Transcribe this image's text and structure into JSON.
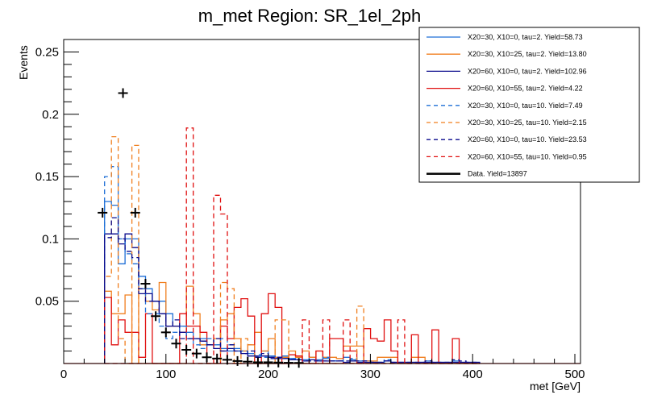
{
  "chart_data": {
    "type": "histogram",
    "title": "m_met Region: SR_1el_2ph",
    "xlabel": "met [GeV]",
    "ylabel": "Events",
    "xlim": [
      0,
      500
    ],
    "ylim": [
      0,
      0.26
    ],
    "x_ticks": [
      "0",
      "100",
      "200",
      "300",
      "400",
      "500"
    ],
    "x_tick_values": [
      0,
      100,
      200,
      300,
      400,
      500
    ],
    "y_ticks": [
      "0.05",
      "0.1",
      "0.15",
      "0.2",
      "0.25"
    ],
    "y_tick_values": [
      0.05,
      0.1,
      0.15,
      0.2,
      0.25
    ],
    "bin_start": 40,
    "bin_width": 6.67,
    "legend_position": "top-right",
    "series": [
      {
        "name": "X20=30, X10=0, tau=2. Yield=58.73",
        "color": "#1f6fd6",
        "style": "solid",
        "values": [
          0.13,
          0.127,
          0.08,
          0.1,
          0.1,
          0.07,
          0.06,
          0.05,
          0.05,
          0.04,
          0.03,
          0.03,
          0.025,
          0.02,
          0.02,
          0.015,
          0.015,
          0.012,
          0.01,
          0.012,
          0.01,
          0.008,
          0.006,
          0.01,
          0.006,
          0.005,
          0.006,
          0.004,
          0.003,
          0.003,
          0.005,
          0.003,
          0.004,
          0.002,
          0.002,
          0.005,
          0.003,
          0.002,
          0.002,
          0.001,
          0.001,
          0.002,
          0.001,
          0.001,
          0.001,
          0.001,
          0.001,
          0.002,
          0.001,
          0.001,
          0.001,
          0.002,
          0.001,
          0.001,
          0.001
        ]
      },
      {
        "name": "X20=30, X10=25, tau=2. Yield=13.80",
        "color": "#f07f1f",
        "style": "solid",
        "values": [
          0.058,
          0.04,
          0.04,
          0.055,
          0,
          0.06,
          0.05,
          0.043,
          0.065,
          0.03,
          0.03,
          0.025,
          0.062,
          0.04,
          0.015,
          0.015,
          0.02,
          0.035,
          0.04,
          0.02,
          0.01,
          0.015,
          0.025,
          0.01,
          0.02,
          0.005,
          0.005,
          0.01,
          0.005,
          0.01,
          0.005,
          0.01,
          0.005,
          0.005,
          0.004,
          0.014,
          0.014,
          0.014,
          0.002,
          0.002,
          0.005,
          0.005,
          0.005,
          0.0,
          0.0,
          0.005,
          0.005,
          0.0,
          0.0,
          0.0,
          0.0,
          0.0,
          0.0,
          0.0,
          0.0
        ]
      },
      {
        "name": "X20=60, X10=0, tau=2. Yield=102.96",
        "color": "#0a0a8c",
        "style": "solid",
        "values": [
          0.104,
          0.104,
          0.096,
          0.104,
          0.093,
          0.056,
          0.056,
          0.05,
          0.04,
          0.03,
          0.03,
          0.025,
          0.02,
          0.02,
          0.018,
          0.015,
          0.012,
          0.01,
          0.012,
          0.01,
          0.008,
          0.006,
          0.005,
          0.006,
          0.005,
          0.004,
          0.004,
          0.003,
          0.003,
          0.002,
          0.003,
          0.002,
          0.002,
          0.002,
          0.002,
          0.001,
          0.002,
          0.001,
          0.001,
          0.001,
          0.001,
          0.002,
          0.001,
          0.001,
          0.001,
          0.001,
          0.001,
          0.001,
          0.001,
          0.001,
          0.001,
          0.001,
          0.001,
          0.001,
          0.001
        ]
      },
      {
        "name": "X20=60, X10=55, tau=2. Yield=4.22",
        "color": "#e01010",
        "style": "solid",
        "values": [
          0.053,
          0.015,
          0.035,
          0.025,
          0.025,
          0.005,
          0.04,
          0.0,
          0.0,
          0.0,
          0.0,
          0.04,
          0.03,
          0.03,
          0.025,
          0.0,
          0.0,
          0.03,
          0.02,
          0.045,
          0.052,
          0.038,
          0.0,
          0.04,
          0.056,
          0.045,
          0.0,
          0.007,
          0.006,
          0.0,
          0.0,
          0.01,
          0.0,
          0.02,
          0.02,
          0.01,
          0.01,
          0.0,
          0.028,
          0.02,
          0.018,
          0.035,
          0.01,
          0.0,
          0.0,
          0.023,
          0.0,
          0.0,
          0.027,
          0.0,
          0.0,
          0.02,
          0.0,
          0.0,
          0.0
        ]
      },
      {
        "name": "X20=30, X10=0, tau=10. Yield=7.49",
        "color": "#1f6fd6",
        "style": "dashed",
        "values": [
          0.15,
          0.158,
          0.1,
          0.088,
          0.08,
          0.06,
          0.04,
          0.04,
          0.03,
          0.02,
          0.025,
          0.03,
          0.02,
          0.015,
          0.012,
          0.02,
          0.015,
          0.02,
          0.015,
          0.01,
          0.01,
          0.008,
          0.007,
          0.005,
          0.006,
          0.005,
          0.004,
          0.004,
          0.003,
          0.003,
          0.002,
          0.002,
          0.005,
          0.002,
          0.002,
          0.0,
          0.004,
          0.002,
          0.002,
          0.0,
          0.0,
          0.003,
          0.0,
          0.0,
          0.0,
          0.0,
          0.0,
          0.0,
          0.0,
          0.0,
          0.0,
          0.0,
          0.0,
          0.0,
          0.0
        ]
      },
      {
        "name": "X20=30, X10=25, tau=10. Yield=2.15",
        "color": "#f07f1f",
        "style": "dashed",
        "values": [
          0.07,
          0.182,
          0.02,
          0.0,
          0.175,
          0.0,
          0.0,
          0.0,
          0.0,
          0.0,
          0.0,
          0.0,
          0.0,
          0.0,
          0.0,
          0.0,
          0.0,
          0.065,
          0.06,
          0.0,
          0.02,
          0.015,
          0.0,
          0.0,
          0.0,
          0.035,
          0.035,
          0.0,
          0.0,
          0.0,
          0.0,
          0.0,
          0.0,
          0.0,
          0.0,
          0.0,
          0.0,
          0.046,
          0.0,
          0.0,
          0.0,
          0.0,
          0.0,
          0.0,
          0.0,
          0.0,
          0.0,
          0.0,
          0.0,
          0.0,
          0.0,
          0.0,
          0.0,
          0.0,
          0.0
        ]
      },
      {
        "name": "X20=60, X10=0, tau=10. Yield=23.53",
        "color": "#0a0a8c",
        "style": "dashed",
        "values": [
          0.101,
          0.117,
          0.1,
          0.09,
          0.085,
          0.06,
          0.05,
          0.05,
          0.04,
          0.03,
          0.035,
          0.02,
          0.02,
          0.02,
          0.018,
          0.015,
          0.02,
          0.01,
          0.015,
          0.01,
          0.008,
          0.01,
          0.006,
          0.008,
          0.004,
          0.005,
          0.004,
          0.003,
          0.003,
          0.002,
          0.002,
          0.002,
          0.002,
          0.002,
          0.002,
          0.002,
          0.002,
          0.002,
          0.002,
          0.001,
          0.001,
          0.002,
          0.001,
          0.001,
          0.001,
          0.001,
          0.001,
          0.002,
          0.001,
          0.001,
          0.001,
          0.003,
          0.002,
          0.001,
          0.001
        ]
      },
      {
        "name": "X20=60, X10=55, tau=10. Yield=0.95",
        "color": "#e01010",
        "style": "dashed",
        "values": [
          0.0,
          0.0,
          0.0,
          0.0,
          0.0,
          0.0,
          0.0,
          0.0,
          0.0,
          0.0,
          0.0,
          0.0,
          0.189,
          0.0,
          0.0,
          0.0,
          0.135,
          0.12,
          0.0,
          0.0,
          0.0,
          0.0,
          0.0,
          0.0,
          0.0,
          0.0,
          0.0,
          0.0,
          0.0,
          0.035,
          0.0,
          0.0,
          0.035,
          0.0,
          0.0,
          0.035,
          0.0,
          0.0,
          0.0,
          0.0,
          0.0,
          0.0,
          0.0,
          0.035,
          0.0,
          0.0,
          0.0,
          0.0,
          0.0,
          0.0,
          0.0,
          0.0,
          0.0,
          0.0,
          0.0
        ]
      }
    ],
    "data": {
      "name": "Data. Yield=13897",
      "color": "#000000",
      "points": [
        {
          "x": 38,
          "y": 0.121
        },
        {
          "x": 58,
          "y": 0.217
        },
        {
          "x": 70,
          "y": 0.121
        },
        {
          "x": 80,
          "y": 0.064
        },
        {
          "x": 90,
          "y": 0.038
        },
        {
          "x": 100,
          "y": 0.025
        },
        {
          "x": 110,
          "y": 0.016
        },
        {
          "x": 120,
          "y": 0.011
        },
        {
          "x": 130,
          "y": 0.008
        },
        {
          "x": 140,
          "y": 0.005
        },
        {
          "x": 150,
          "y": 0.004
        },
        {
          "x": 160,
          "y": 0.003
        },
        {
          "x": 170,
          "y": 0.002
        },
        {
          "x": 180,
          "y": 0.0015
        },
        {
          "x": 190,
          "y": 0.001
        },
        {
          "x": 200,
          "y": 0.001
        },
        {
          "x": 210,
          "y": 0.0008
        },
        {
          "x": 220,
          "y": 0.0006
        },
        {
          "x": 230,
          "y": 0.0005
        }
      ]
    }
  }
}
